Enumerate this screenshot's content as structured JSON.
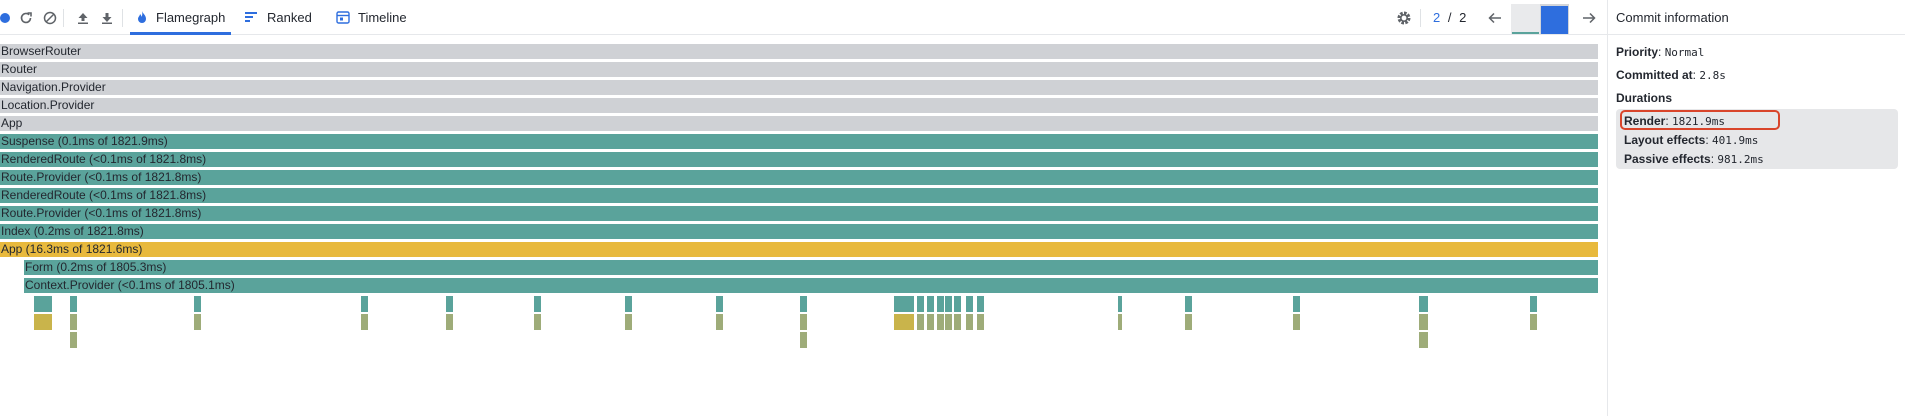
{
  "toolbar": {
    "icons": [
      "record-icon",
      "reload-icon",
      "clear-icon",
      "upload-icon",
      "download-icon"
    ],
    "tabs": [
      {
        "label": "Flamegraph",
        "icon": "flame-icon",
        "active": true
      },
      {
        "label": "Ranked",
        "icon": "ranked-icon",
        "active": false
      },
      {
        "label": "Timeline",
        "icon": "timeline-icon",
        "active": false
      }
    ],
    "settings_icon": "gear-icon",
    "commit_current": "2",
    "commit_separator": "/",
    "commit_total": "2"
  },
  "commit_chart": {
    "commits": [
      {
        "label": "1",
        "value": 0.05
      },
      {
        "label": "2",
        "value": 1.0
      }
    ],
    "selected": "2"
  },
  "flamegraph": {
    "rows": [
      {
        "label": "BrowserRouter",
        "color": "gray",
        "depth": 0
      },
      {
        "label": "Router",
        "color": "gray",
        "depth": 0
      },
      {
        "label": "Navigation.Provider",
        "color": "gray",
        "depth": 0
      },
      {
        "label": "Location.Provider",
        "color": "gray",
        "depth": 0
      },
      {
        "label": "App",
        "color": "gray",
        "depth": 0
      },
      {
        "label": "Suspense (0.1ms of 1821.9ms)",
        "color": "teal",
        "depth": 0
      },
      {
        "label": "RenderedRoute (<0.1ms of 1821.8ms)",
        "color": "teal",
        "depth": 0
      },
      {
        "label": "Route.Provider (<0.1ms of 1821.8ms)",
        "color": "teal",
        "depth": 0
      },
      {
        "label": "RenderedRoute (<0.1ms of 1821.8ms)",
        "color": "teal",
        "depth": 0
      },
      {
        "label": "Route.Provider (<0.1ms of 1821.8ms)",
        "color": "teal",
        "depth": 0
      },
      {
        "label": "Index (0.2ms of 1821.8ms)",
        "color": "teal",
        "depth": 0
      },
      {
        "label": "App (16.3ms of 1821.6ms)",
        "color": "yellow",
        "depth": 0
      },
      {
        "label": "Form (0.2ms of 1805.3ms)",
        "color": "teal",
        "depth": 1
      },
      {
        "label": "Context.Provider (<0.1ms of 1805.1ms)",
        "color": "teal",
        "depth": 1
      }
    ]
  },
  "sidebar": {
    "title": "Commit information",
    "priority_label": "Priority",
    "priority_value": "Normal",
    "committed_label": "Committed at",
    "committed_value": "2.8s",
    "durations_title": "Durations",
    "durations": [
      {
        "label": "Render",
        "value": "1821.9ms",
        "highlighted": true
      },
      {
        "label": "Layout effects",
        "value": "401.9ms",
        "highlighted": false
      },
      {
        "label": "Passive effects",
        "value": "981.2ms",
        "highlighted": false
      }
    ]
  },
  "colors": {
    "accent": "#2e6ede",
    "bar_gray": "#cfd1d5",
    "bar_teal": "#5aa39b",
    "bar_yellow": "#e8b93d",
    "bar_olive": "#9eac79",
    "highlight_border": "#d9452b"
  }
}
